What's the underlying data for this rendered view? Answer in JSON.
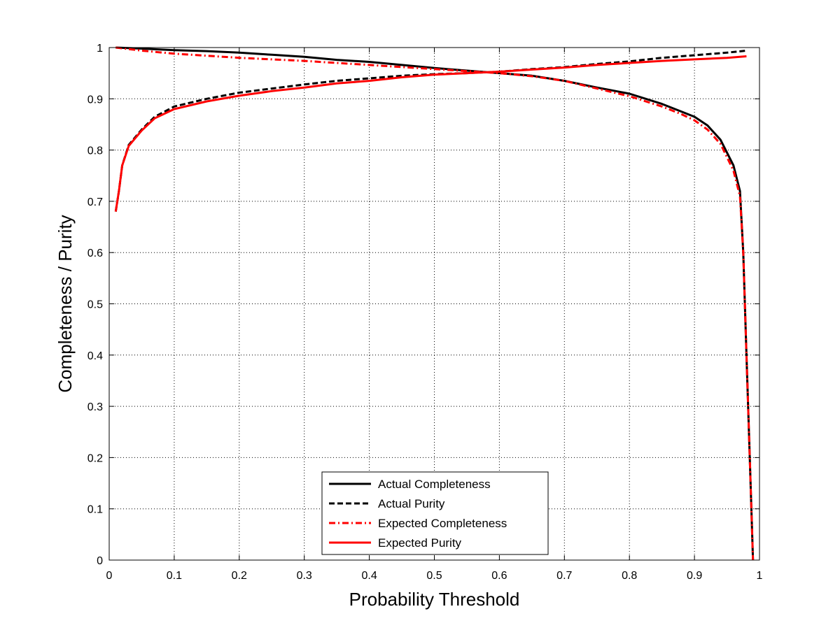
{
  "chart_data": {
    "type": "line",
    "title": "",
    "xlabel": "Probability Threshold",
    "ylabel": "Completeness / Purity",
    "xlim": [
      0,
      1
    ],
    "ylim": [
      0,
      1
    ],
    "xticks": [
      "0",
      "0.1",
      "0.2",
      "0.3",
      "0.4",
      "0.5",
      "0.6",
      "0.7",
      "0.8",
      "0.9",
      "1"
    ],
    "yticks": [
      "0",
      "0.1",
      "0.2",
      "0.3",
      "0.4",
      "0.5",
      "0.6",
      "0.7",
      "0.8",
      "0.9",
      "1"
    ],
    "grid": true,
    "legend_position": "bottom-center",
    "series": [
      {
        "name": "Actual Completeness",
        "color": "#000000",
        "style": "solid",
        "x": [
          0.01,
          0.05,
          0.1,
          0.15,
          0.2,
          0.25,
          0.3,
          0.35,
          0.4,
          0.45,
          0.5,
          0.55,
          0.6,
          0.65,
          0.7,
          0.75,
          0.8,
          0.85,
          0.88,
          0.9,
          0.92,
          0.94,
          0.96,
          0.97,
          0.975,
          0.98,
          0.985,
          0.99
        ],
        "y": [
          1.0,
          0.998,
          0.995,
          0.993,
          0.99,
          0.986,
          0.982,
          0.976,
          0.972,
          0.966,
          0.96,
          0.955,
          0.95,
          0.945,
          0.935,
          0.922,
          0.91,
          0.89,
          0.875,
          0.865,
          0.848,
          0.82,
          0.77,
          0.72,
          0.6,
          0.4,
          0.2,
          0.0
        ]
      },
      {
        "name": "Actual Purity",
        "color": "#000000",
        "style": "dashed",
        "x": [
          0.01,
          0.015,
          0.02,
          0.03,
          0.05,
          0.07,
          0.1,
          0.15,
          0.2,
          0.25,
          0.3,
          0.35,
          0.4,
          0.45,
          0.5,
          0.55,
          0.6,
          0.65,
          0.7,
          0.75,
          0.8,
          0.85,
          0.9,
          0.95,
          0.98
        ],
        "y": [
          0.68,
          0.72,
          0.77,
          0.81,
          0.84,
          0.865,
          0.885,
          0.9,
          0.912,
          0.92,
          0.928,
          0.935,
          0.94,
          0.945,
          0.948,
          0.95,
          0.953,
          0.958,
          0.962,
          0.968,
          0.973,
          0.98,
          0.985,
          0.99,
          0.994
        ]
      },
      {
        "name": "Expected Completeness",
        "color": "#ff0000",
        "style": "dashdot",
        "x": [
          0.01,
          0.05,
          0.1,
          0.15,
          0.2,
          0.25,
          0.3,
          0.35,
          0.4,
          0.45,
          0.5,
          0.55,
          0.6,
          0.65,
          0.7,
          0.75,
          0.8,
          0.85,
          0.88,
          0.9,
          0.92,
          0.94,
          0.96,
          0.97,
          0.975,
          0.98,
          0.985,
          0.99
        ],
        "y": [
          1.0,
          0.994,
          0.988,
          0.984,
          0.98,
          0.977,
          0.974,
          0.97,
          0.966,
          0.962,
          0.958,
          0.954,
          0.95,
          0.944,
          0.935,
          0.92,
          0.905,
          0.885,
          0.87,
          0.858,
          0.84,
          0.812,
          0.76,
          0.71,
          0.6,
          0.4,
          0.2,
          0.0
        ]
      },
      {
        "name": "Expected Purity",
        "color": "#ff0000",
        "style": "solid",
        "x": [
          0.01,
          0.015,
          0.02,
          0.03,
          0.05,
          0.07,
          0.1,
          0.15,
          0.2,
          0.25,
          0.3,
          0.35,
          0.4,
          0.45,
          0.5,
          0.55,
          0.6,
          0.65,
          0.7,
          0.75,
          0.8,
          0.85,
          0.9,
          0.95,
          0.98
        ],
        "y": [
          0.68,
          0.72,
          0.77,
          0.808,
          0.838,
          0.862,
          0.88,
          0.895,
          0.906,
          0.915,
          0.922,
          0.93,
          0.935,
          0.942,
          0.947,
          0.95,
          0.953,
          0.957,
          0.961,
          0.966,
          0.97,
          0.974,
          0.977,
          0.98,
          0.983
        ]
      }
    ]
  }
}
